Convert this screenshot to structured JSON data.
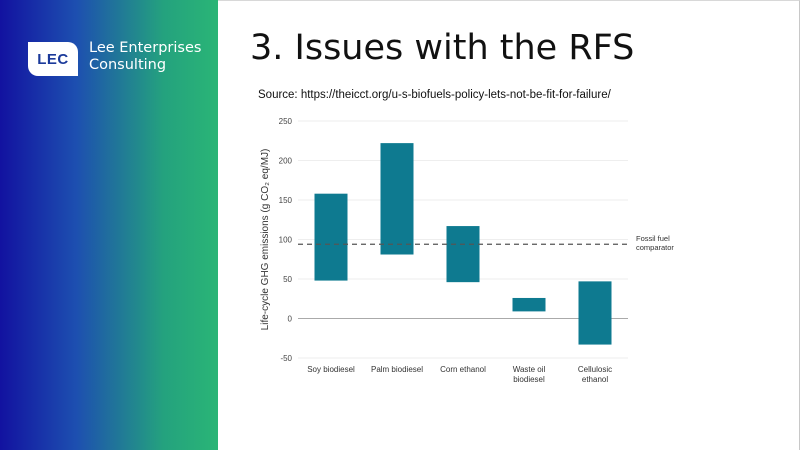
{
  "brand": {
    "logo_text": "LEC",
    "line1": "Lee Enterprises",
    "line2": "Consulting"
  },
  "slide": {
    "title": "3. Issues with the RFS",
    "source": "Source:  https://theicct.org/u-s-biofuels-policy-lets-not-be-fit-for-failure/"
  },
  "colors": {
    "bar": "#0e7a90",
    "reference_line": "#555555",
    "zero_line": "#aaaaaa",
    "grid": "#eeeeee"
  },
  "chart_data": {
    "type": "bar",
    "subtype": "floating-range",
    "ylabel": "Life-cycle GHG emissions (g CO₂ eq/MJ)",
    "ylim": [
      -50,
      250
    ],
    "yticks": [
      250,
      200,
      150,
      100,
      50,
      0,
      -50
    ],
    "grid": true,
    "categories": [
      [
        "Soy biodiesel"
      ],
      [
        "Palm biodiesel"
      ],
      [
        "Corn ethanol"
      ],
      [
        "Waste oil",
        "biodiesel"
      ],
      [
        "Cellulosic",
        "ethanol"
      ]
    ],
    "ranges": [
      {
        "low": 48,
        "high": 158
      },
      {
        "low": 81,
        "high": 222
      },
      {
        "low": 46,
        "high": 117
      },
      {
        "low": 9,
        "high": 26
      },
      {
        "low": -33,
        "high": 47
      }
    ],
    "reference_line": {
      "value": 94,
      "label": [
        "Fossil fuel",
        "comparator"
      ],
      "style": "dashed"
    }
  }
}
